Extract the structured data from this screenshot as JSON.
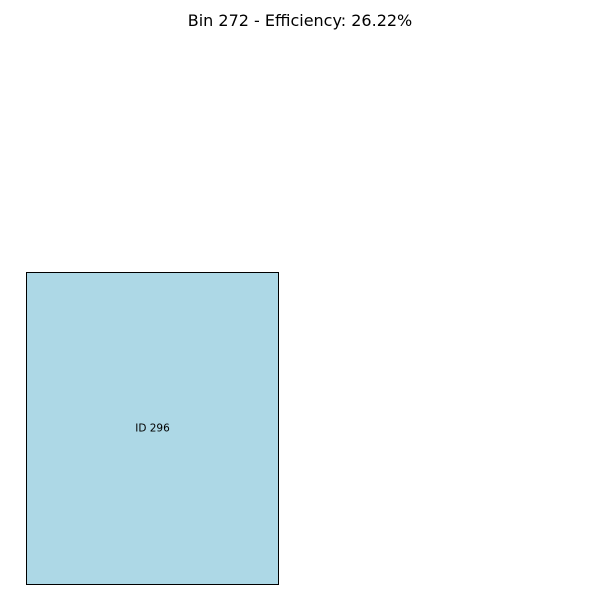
{
  "title": "Bin 272 - Efficiency: 26.22%",
  "bin": {
    "id": 272,
    "efficiency_percent": 26.22
  },
  "items": [
    {
      "label": "ID 296",
      "fill_color": "#add8e6",
      "edge_color": "#000000"
    }
  ],
  "colors": {
    "background": "#ffffff",
    "text": "#000000"
  }
}
